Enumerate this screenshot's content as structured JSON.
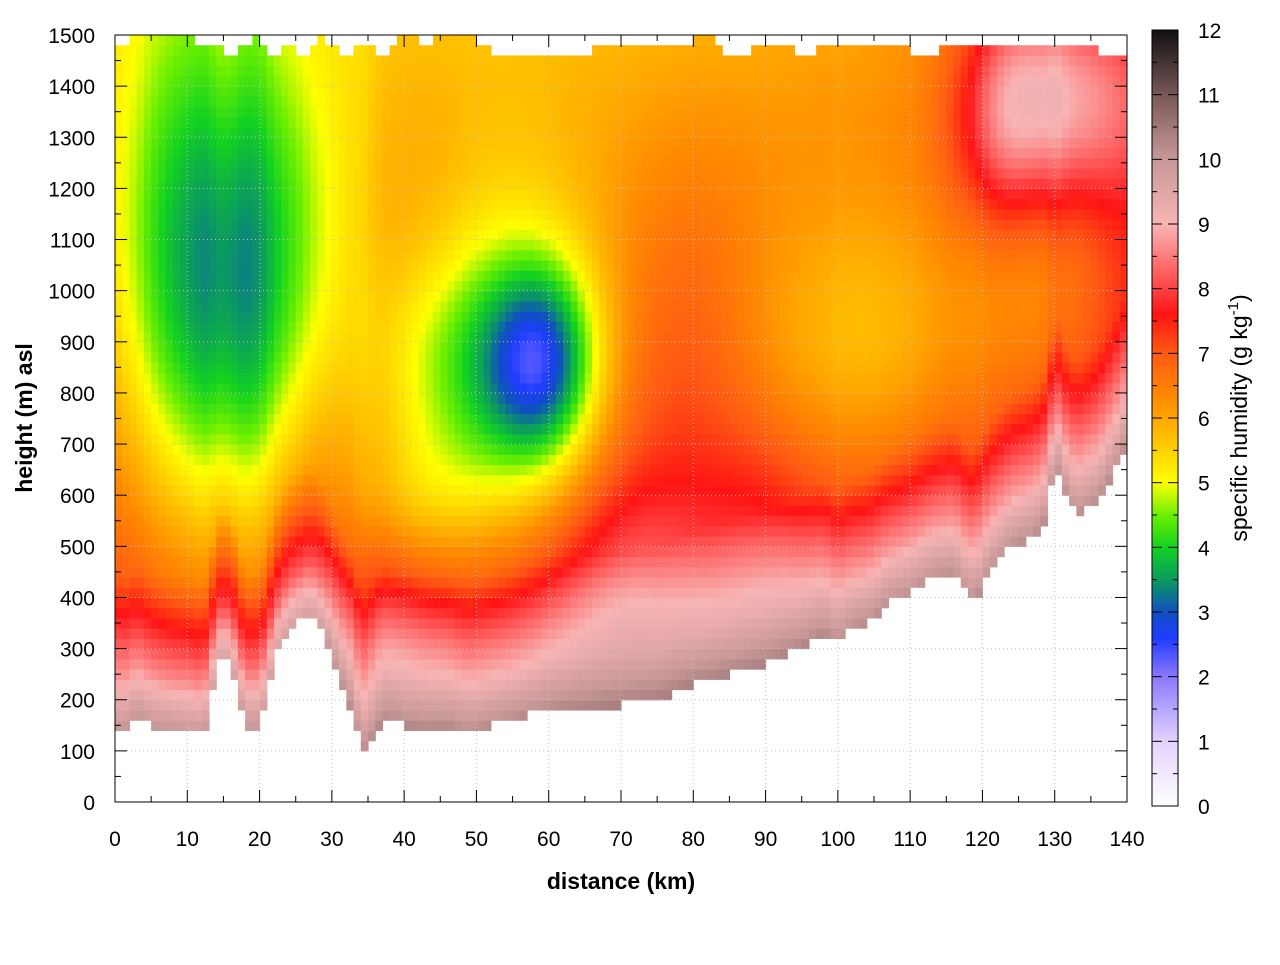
{
  "chart_data": {
    "type": "heatmap",
    "xlabel": "distance (km)",
    "ylabel": "height (m) asl",
    "colorbar_label": "specific humidity (g kg",
    "colorbar_label_sup": "-1",
    "colorbar_label_close": ")",
    "xlim": [
      0,
      140
    ],
    "ylim": [
      0,
      1500
    ],
    "clim": [
      0,
      12
    ],
    "x_ticks": [
      "0",
      "10",
      "20",
      "30",
      "40",
      "50",
      "60",
      "70",
      "80",
      "90",
      "100",
      "110",
      "120",
      "130",
      "140"
    ],
    "y_ticks": [
      "0",
      "100",
      "200",
      "300",
      "400",
      "500",
      "600",
      "700",
      "800",
      "900",
      "1000",
      "1100",
      "1200",
      "1300",
      "1400",
      "1500"
    ],
    "c_ticks": [
      "0",
      "1",
      "2",
      "3",
      "4",
      "5",
      "6",
      "7",
      "8",
      "9",
      "10",
      "11",
      "12"
    ],
    "grid": true,
    "palette": [
      {
        "v": 0,
        "c": "#ffffff"
      },
      {
        "v": 1,
        "c": "#e4d2ff"
      },
      {
        "v": 2,
        "c": "#8a78ff"
      },
      {
        "v": 2.6,
        "c": "#1f3cff"
      },
      {
        "v": 3,
        "c": "#0f50c0"
      },
      {
        "v": 3.5,
        "c": "#0b9a60"
      },
      {
        "v": 4,
        "c": "#13d220"
      },
      {
        "v": 4.5,
        "c": "#6cf000"
      },
      {
        "v": 5,
        "c": "#ffff00"
      },
      {
        "v": 5.6,
        "c": "#ffc800"
      },
      {
        "v": 6.3,
        "c": "#ff8c00"
      },
      {
        "v": 7,
        "c": "#ff5a14"
      },
      {
        "v": 7.6,
        "c": "#ff1414"
      },
      {
        "v": 8.2,
        "c": "#ff5a5a"
      },
      {
        "v": 9,
        "c": "#f8b4b4"
      },
      {
        "v": 10,
        "c": "#c89898"
      },
      {
        "v": 11,
        "c": "#785858"
      },
      {
        "v": 12,
        "c": "#101010"
      }
    ],
    "surface_height": [
      {
        "x": 0,
        "y": 145
      },
      {
        "x": 1,
        "y": 130
      },
      {
        "x": 3,
        "y": 170
      },
      {
        "x": 5,
        "y": 150
      },
      {
        "x": 8,
        "y": 140
      },
      {
        "x": 10,
        "y": 140
      },
      {
        "x": 12,
        "y": 130
      },
      {
        "x": 13,
        "y": 160
      },
      {
        "x": 14,
        "y": 280
      },
      {
        "x": 16,
        "y": 280
      },
      {
        "x": 18,
        "y": 150
      },
      {
        "x": 20,
        "y": 150
      },
      {
        "x": 21,
        "y": 200
      },
      {
        "x": 22,
        "y": 280
      },
      {
        "x": 24,
        "y": 340
      },
      {
        "x": 27,
        "y": 365
      },
      {
        "x": 29,
        "y": 320
      },
      {
        "x": 31,
        "y": 240
      },
      {
        "x": 33,
        "y": 170
      },
      {
        "x": 34,
        "y": 95
      },
      {
        "x": 35,
        "y": 110
      },
      {
        "x": 37,
        "y": 160
      },
      {
        "x": 40,
        "y": 150
      },
      {
        "x": 43,
        "y": 145
      },
      {
        "x": 46,
        "y": 150
      },
      {
        "x": 49,
        "y": 135
      },
      {
        "x": 52,
        "y": 150
      },
      {
        "x": 56,
        "y": 165
      },
      {
        "x": 60,
        "y": 180
      },
      {
        "x": 65,
        "y": 185
      },
      {
        "x": 70,
        "y": 190
      },
      {
        "x": 75,
        "y": 200
      },
      {
        "x": 80,
        "y": 230
      },
      {
        "x": 85,
        "y": 250
      },
      {
        "x": 90,
        "y": 270
      },
      {
        "x": 95,
        "y": 300
      },
      {
        "x": 98,
        "y": 330
      },
      {
        "x": 100,
        "y": 310
      },
      {
        "x": 102,
        "y": 340
      },
      {
        "x": 104,
        "y": 350
      },
      {
        "x": 107,
        "y": 390
      },
      {
        "x": 110,
        "y": 410
      },
      {
        "x": 113,
        "y": 440
      },
      {
        "x": 116,
        "y": 450
      },
      {
        "x": 118,
        "y": 400
      },
      {
        "x": 119,
        "y": 395
      },
      {
        "x": 121,
        "y": 450
      },
      {
        "x": 124,
        "y": 500
      },
      {
        "x": 127,
        "y": 520
      },
      {
        "x": 129,
        "y": 560
      },
      {
        "x": 130,
        "y": 680
      },
      {
        "x": 131,
        "y": 620
      },
      {
        "x": 133,
        "y": 560
      },
      {
        "x": 136,
        "y": 590
      },
      {
        "x": 138,
        "y": 640
      },
      {
        "x": 140,
        "y": 700
      }
    ],
    "top_edge": [
      {
        "x": 0,
        "y": 1470
      },
      {
        "x": 2,
        "y": 1490
      },
      {
        "x": 4,
        "y": 1500
      },
      {
        "x": 10,
        "y": 1500
      },
      {
        "x": 12,
        "y": 1470
      },
      {
        "x": 14,
        "y": 1490
      },
      {
        "x": 16,
        "y": 1460
      },
      {
        "x": 18,
        "y": 1480
      },
      {
        "x": 20,
        "y": 1500
      },
      {
        "x": 22,
        "y": 1450
      },
      {
        "x": 24,
        "y": 1480
      },
      {
        "x": 26,
        "y": 1450
      },
      {
        "x": 28,
        "y": 1500
      },
      {
        "x": 30,
        "y": 1480
      },
      {
        "x": 32,
        "y": 1460
      },
      {
        "x": 35,
        "y": 1490
      },
      {
        "x": 37,
        "y": 1460
      },
      {
        "x": 40,
        "y": 1500
      },
      {
        "x": 43,
        "y": 1480
      },
      {
        "x": 46,
        "y": 1500
      },
      {
        "x": 50,
        "y": 1490
      },
      {
        "x": 54,
        "y": 1450
      },
      {
        "x": 57,
        "y": 1460
      },
      {
        "x": 60,
        "y": 1450
      },
      {
        "x": 64,
        "y": 1460
      },
      {
        "x": 68,
        "y": 1480
      },
      {
        "x": 72,
        "y": 1470
      },
      {
        "x": 76,
        "y": 1480
      },
      {
        "x": 80,
        "y": 1490
      },
      {
        "x": 82,
        "y": 1500
      },
      {
        "x": 84,
        "y": 1460
      },
      {
        "x": 88,
        "y": 1470
      },
      {
        "x": 92,
        "y": 1480
      },
      {
        "x": 96,
        "y": 1460
      },
      {
        "x": 100,
        "y": 1490
      },
      {
        "x": 104,
        "y": 1470
      },
      {
        "x": 108,
        "y": 1480
      },
      {
        "x": 112,
        "y": 1460
      },
      {
        "x": 116,
        "y": 1480
      },
      {
        "x": 120,
        "y": 1470
      },
      {
        "x": 124,
        "y": 1490
      },
      {
        "x": 128,
        "y": 1480
      },
      {
        "x": 132,
        "y": 1490
      },
      {
        "x": 136,
        "y": 1470
      },
      {
        "x": 140,
        "y": 1450
      }
    ],
    "features": [
      {
        "x": 10,
        "y": 1000,
        "sx": 8,
        "sy": 380,
        "amp": -2.6
      },
      {
        "x": 26,
        "y": 1050,
        "sx": 6,
        "sy": 380,
        "amp": -1.6
      },
      {
        "x": 18,
        "y": 900,
        "sx": 5,
        "sy": 350,
        "amp": -1.0
      },
      {
        "x": 45,
        "y": 830,
        "sx": 8,
        "sy": 170,
        "amp": -1.4
      },
      {
        "x": 59,
        "y": 860,
        "sx": 5.5,
        "sy": 130,
        "amp": -2.7
      },
      {
        "x": 56,
        "y": 900,
        "sx": 9,
        "sy": 260,
        "amp": -1.4
      },
      {
        "x": 42,
        "y": 580,
        "sx": 7,
        "sy": 110,
        "amp": -0.9
      },
      {
        "x": 58,
        "y": 620,
        "sx": 8,
        "sy": 130,
        "amp": -0.6
      },
      {
        "x": 95,
        "y": 850,
        "sx": 12,
        "sy": 220,
        "amp": -0.8
      },
      {
        "x": 110,
        "y": 900,
        "sx": 10,
        "sy": 200,
        "amp": -0.8
      },
      {
        "x": 128,
        "y": 1040,
        "sx": 6,
        "sy": 200,
        "amp": -0.8
      },
      {
        "x": 80,
        "y": 900,
        "sx": 8,
        "sy": 260,
        "amp": 0.5
      },
      {
        "x": 90,
        "y": 520,
        "sx": 6,
        "sy": 160,
        "amp": 0.5
      },
      {
        "x": 38,
        "y": 350,
        "sx": 5,
        "sy": 120,
        "amp": 0.3
      },
      {
        "x": 70,
        "y": 450,
        "sx": 8,
        "sy": 150,
        "amp": 0.9
      },
      {
        "x": 133,
        "y": 1380,
        "sx": 8,
        "sy": 160,
        "amp": 2.2
      },
      {
        "x": 123,
        "y": 1350,
        "sx": 5,
        "sy": 170,
        "amp": 1.6
      }
    ]
  }
}
